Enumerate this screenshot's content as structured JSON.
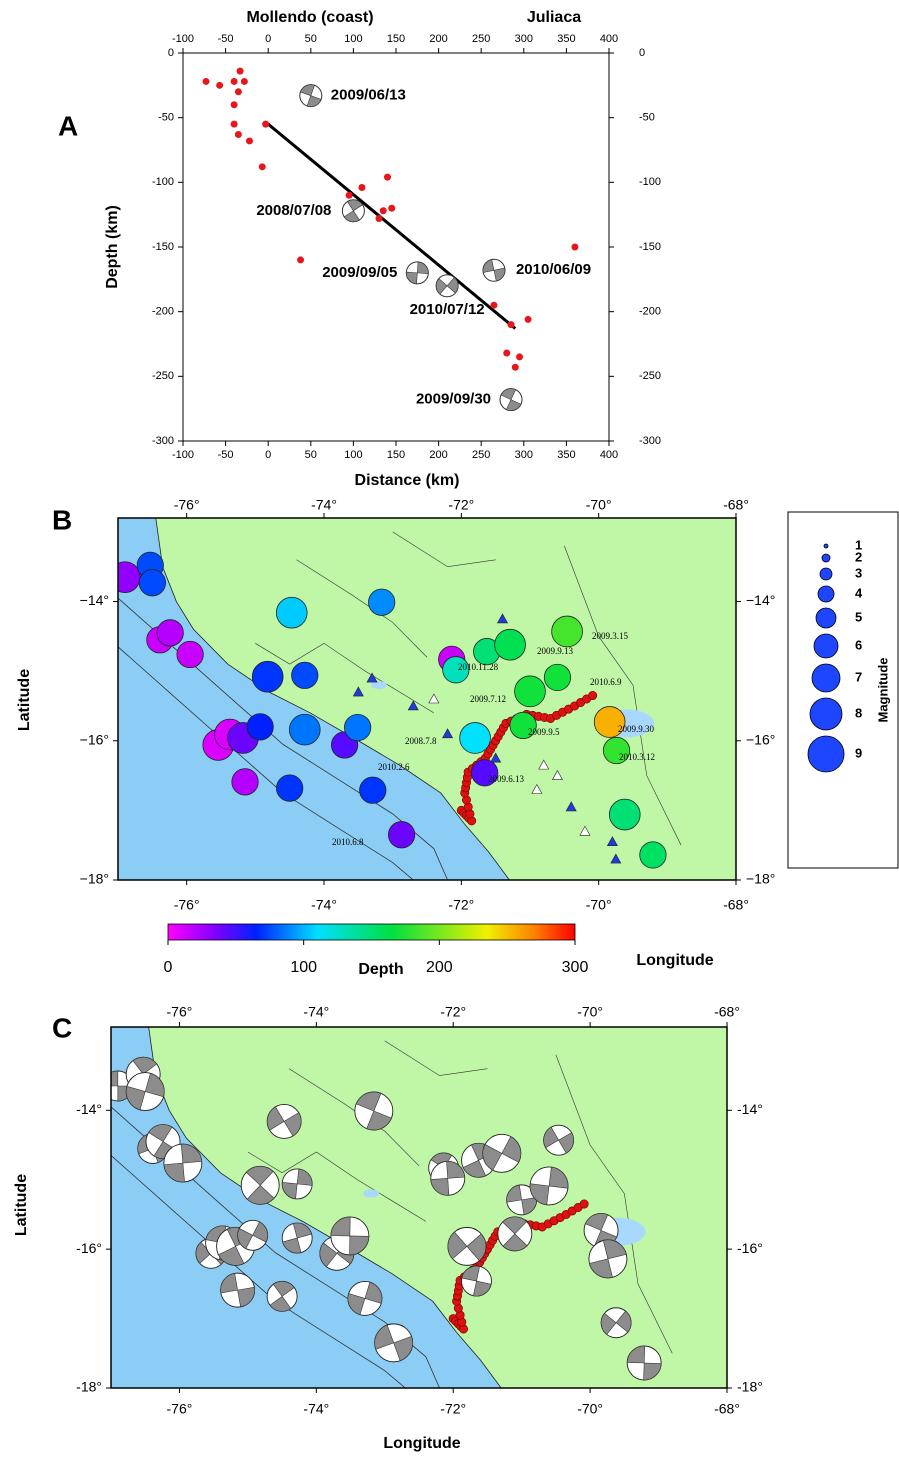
{
  "chart_data": [
    {
      "type": "scatter",
      "panel_label": "A",
      "top_labels": [
        "Mollendo (coast)",
        "Juliaca"
      ],
      "x_label": "Distance (km)",
      "y_label": "Depth (km)",
      "xlim": [
        -100,
        400
      ],
      "ylim": [
        -300,
        0
      ],
      "xticks": [
        -100,
        -50,
        0,
        50,
        100,
        150,
        200,
        250,
        300,
        350,
        400
      ],
      "yticks": [
        0,
        -50,
        -100,
        -150,
        -200,
        -250,
        -300
      ],
      "color": "#e8161b",
      "x": [
        -73,
        -57,
        -40,
        -33,
        -28,
        -35,
        -40,
        -40,
        -35,
        -22,
        -7,
        -3,
        95,
        110,
        140,
        135,
        145,
        130,
        38,
        360,
        265,
        285,
        305,
        280,
        295,
        290
      ],
      "y": [
        -22,
        -25,
        -22,
        -14,
        -22,
        -30,
        -40,
        -55,
        -63,
        -68,
        -88,
        -55,
        -110,
        -104,
        -96,
        -122,
        -120,
        -128,
        -160,
        -150,
        -195,
        -210,
        -206,
        -232,
        -235,
        -243
      ],
      "fit_line": {
        "x": [
          0,
          290
        ],
        "y": [
          -55,
          -213
        ]
      },
      "mechanisms": {
        "labels": [
          "2009/06/13",
          "2008/07/08",
          "2009/09/05",
          "2010/07/12",
          "2010/06/09",
          "2009/09/30"
        ],
        "x": [
          50,
          100,
          175,
          210,
          265,
          285
        ],
        "y": [
          -33,
          -122,
          -170,
          -180,
          -168,
          -268
        ]
      }
    },
    {
      "type": "bubble",
      "panel_label": "B",
      "x_label": "Longitude",
      "y_label": "Latitude",
      "xlim": [
        -77,
        -68
      ],
      "ylim": [
        -18,
        -12.8
      ],
      "xticks": [
        {
          "value": -76,
          "label": "-76°"
        },
        {
          "value": -74,
          "label": "-74°"
        },
        {
          "value": -72,
          "label": "-72°"
        },
        {
          "value": -70,
          "label": "-70°"
        },
        {
          "value": -68,
          "label": "-68°"
        }
      ],
      "yticks": [
        {
          "value": -14,
          "label": "−14°"
        },
        {
          "value": -16,
          "label": "−16°"
        },
        {
          "value": -18,
          "label": "−18°"
        }
      ],
      "x": [
        -76.9,
        -76.53,
        -76.5,
        -76.39,
        -76.24,
        -75.95,
        -75.54,
        -75.37,
        -75.18,
        -74.93,
        -75.15,
        -74.82,
        -74.28,
        -74.47,
        -73.16,
        -74.28,
        -73.7,
        -73.51,
        -74.5,
        -73.29,
        -72.87,
        -72.14,
        -72.08,
        -71.8,
        -71.66,
        -71.63,
        -71.29,
        -71.0,
        -71.1,
        -70.6,
        -70.46,
        -69.84,
        -69.74,
        -69.62,
        -69.21
      ],
      "y": [
        -13.65,
        -13.48,
        -13.73,
        -14.55,
        -14.45,
        -14.76,
        -16.06,
        -15.91,
        -15.96,
        -15.8,
        -16.59,
        -15.08,
        -15.06,
        -14.16,
        -14.01,
        -15.84,
        -16.06,
        -15.81,
        -16.68,
        -16.71,
        -17.35,
        -14.83,
        -14.98,
        -15.96,
        -16.46,
        -14.72,
        -14.62,
        -15.29,
        -15.78,
        -15.09,
        -14.43,
        -15.73,
        -16.14,
        -17.06,
        -17.64
      ],
      "depth": [
        30,
        75,
        75,
        15,
        20,
        15,
        10,
        10,
        40,
        65,
        20,
        70,
        75,
        105,
        90,
        85,
        45,
        85,
        70,
        70,
        40,
        15,
        130,
        110,
        45,
        150,
        160,
        170,
        170,
        170,
        185,
        255,
        180,
        150,
        155
      ],
      "magnitude": [
        7,
        6,
        6,
        6,
        6,
        6,
        7,
        7,
        7,
        6,
        6,
        7,
        6,
        7,
        6,
        7,
        6,
        6,
        6,
        6,
        6,
        6,
        6,
        7,
        6,
        6,
        7,
        7,
        6,
        6,
        7,
        7,
        6,
        7,
        6
      ],
      "annotations": [
        "2009.3.15",
        "2009.9.13",
        "2010.11.28",
        "2010.6.9",
        "2009.7.12",
        "2009.9.30",
        "2008.7.8",
        "2009.9.5",
        "2010.3.12",
        "2009.6.13",
        "2010.2.6",
        "2010.6.8"
      ],
      "colorbar": {
        "label": "Depth",
        "lim": [
          0,
          300
        ],
        "ticks": [
          0,
          100,
          200,
          300
        ]
      },
      "legend": {
        "title": "Magnitude",
        "values": [
          1,
          2,
          3,
          4,
          5,
          6,
          7,
          8,
          9
        ],
        "color": "#1e46ff"
      }
    },
    {
      "type": "mechanism",
      "panel_label": "C",
      "x_label": "Longitude",
      "y_label": "Latitude",
      "xlim": [
        -77,
        -68
      ],
      "ylim": [
        -18,
        -12.8
      ],
      "xticks": [
        {
          "value": -76,
          "label": "-76°"
        },
        {
          "value": -74,
          "label": "-74°"
        },
        {
          "value": -72,
          "label": "-72°"
        },
        {
          "value": -70,
          "label": "-70°"
        },
        {
          "value": -68,
          "label": "-68°"
        }
      ],
      "yticks": [
        {
          "value": -14,
          "label": "-14°"
        },
        {
          "value": -16,
          "label": "-16°"
        },
        {
          "value": -18,
          "label": "-18°"
        }
      ],
      "x": [
        -76.9,
        -76.53,
        -76.5,
        -76.39,
        -76.24,
        -75.95,
        -75.54,
        -75.37,
        -75.18,
        -74.93,
        -75.15,
        -74.82,
        -74.28,
        -74.47,
        -73.16,
        -74.28,
        -73.7,
        -73.51,
        -74.5,
        -73.29,
        -72.87,
        -72.14,
        -72.08,
        -71.8,
        -71.66,
        -71.63,
        -71.29,
        -71.0,
        -71.1,
        -70.6,
        -70.46,
        -69.84,
        -69.74,
        -69.62,
        -69.21
      ],
      "y": [
        -13.65,
        -13.48,
        -13.73,
        -14.55,
        -14.45,
        -14.76,
        -16.06,
        -15.91,
        -15.96,
        -15.8,
        -16.59,
        -15.08,
        -15.06,
        -14.16,
        -14.01,
        -15.84,
        -16.06,
        -15.81,
        -16.68,
        -16.71,
        -17.35,
        -14.83,
        -14.98,
        -15.96,
        -16.46,
        -14.72,
        -14.62,
        -15.29,
        -15.78,
        -15.09,
        -14.43,
        -15.73,
        -16.14,
        -17.06,
        -17.64
      ]
    }
  ]
}
